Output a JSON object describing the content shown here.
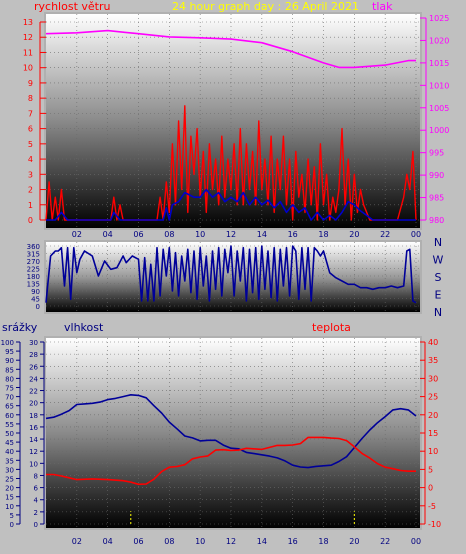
{
  "colors": {
    "wind": "#ff0000",
    "gust": "#0000cc",
    "pressure": "#ff00ff",
    "direction": "#000099",
    "humidity": "#000099",
    "temperature": "#ff0000",
    "rain": "#ffff00",
    "axis_blue": "#000080",
    "title_yellow": "#ffff00"
  },
  "chart_data": [
    {
      "type": "line",
      "title": "24 hour graph day : 26 April 2021",
      "left_label": "rychlost větru",
      "right_label": "tlak",
      "x_ticks": [
        "02",
        "04",
        "06",
        "08",
        "10",
        "12",
        "14",
        "16",
        "18",
        "20",
        "22",
        "00"
      ],
      "y_left": {
        "min": 0,
        "max": 13,
        "ticks": [
          0,
          1,
          2,
          3,
          4,
          5,
          6,
          7,
          8,
          9,
          10,
          11,
          12,
          13
        ]
      },
      "y_right": {
        "min": 980,
        "max": 1025,
        "ticks": [
          980,
          985,
          990,
          995,
          1000,
          1005,
          1010,
          1015,
          1020,
          1025
        ]
      },
      "series": [
        {
          "key": "pressure",
          "axis": "right",
          "x": [
            0,
            2,
            4,
            6,
            8,
            10,
            12,
            14,
            16,
            18,
            19,
            20,
            22,
            23.5,
            24
          ],
          "y": [
            1021.5,
            1021.7,
            1022.2,
            1021.5,
            1020.8,
            1020.6,
            1020.3,
            1019.5,
            1017.5,
            1015,
            1014,
            1014,
            1014.5,
            1015.5,
            1015.5
          ]
        },
        {
          "key": "wind",
          "axis": "left",
          "x": [
            0,
            0.2,
            0.4,
            0.6,
            0.8,
            1.0,
            1.2,
            1.6,
            2.0,
            2.6,
            3.2,
            3.8,
            4.2,
            4.4,
            4.6,
            4.8,
            5.0,
            5.6,
            6.2,
            6.8,
            7.2,
            7.4,
            7.6,
            7.8,
            8.0,
            8.2,
            8.4,
            8.6,
            8.8,
            9.0,
            9.2,
            9.4,
            9.6,
            9.8,
            10.0,
            10.2,
            10.4,
            10.6,
            10.8,
            11.0,
            11.2,
            11.4,
            11.6,
            11.8,
            12.0,
            12.2,
            12.4,
            12.6,
            12.8,
            13.0,
            13.2,
            13.4,
            13.6,
            13.8,
            14.0,
            14.2,
            14.4,
            14.6,
            14.8,
            15.0,
            15.2,
            15.4,
            15.6,
            15.8,
            16.0,
            16.2,
            16.4,
            16.6,
            16.8,
            17.0,
            17.2,
            17.4,
            17.6,
            17.8,
            18.0,
            18.2,
            18.4,
            18.6,
            18.8,
            19.0,
            19.2,
            19.4,
            19.6,
            19.8,
            20.0,
            20.2,
            20.4,
            20.6,
            21.0,
            21.6,
            22.2,
            22.8,
            23.2,
            23.4,
            23.6,
            23.8,
            24.0
          ],
          "y": [
            0,
            2.5,
            0,
            1.5,
            0,
            2,
            0,
            0,
            0,
            0,
            0,
            0,
            0,
            1.5,
            0,
            1,
            0,
            0,
            0,
            0,
            0,
            1.5,
            0,
            2.5,
            0.5,
            5,
            1,
            6.5,
            2,
            7.5,
            0.5,
            5.5,
            3,
            6,
            1.5,
            4.5,
            0.5,
            5,
            2,
            4,
            1,
            5.5,
            1.5,
            4,
            2,
            5,
            1,
            6,
            1,
            5,
            2,
            4.5,
            1,
            6.5,
            2,
            4,
            1,
            5.5,
            0.5,
            4,
            2,
            5.5,
            1,
            4,
            0,
            4.5,
            1.5,
            3,
            0.5,
            4,
            1,
            3.5,
            0,
            5,
            1,
            3,
            0,
            1.5,
            0.5,
            2,
            6,
            1,
            4,
            0,
            3,
            0.5,
            2,
            1,
            0,
            0,
            0,
            0,
            1.5,
            3,
            2,
            4.5,
            0
          ]
        },
        {
          "key": "gust",
          "axis": "left",
          "x": [
            0,
            0.6,
            1.0,
            1.4,
            1.8,
            4.2,
            4.4,
            4.8,
            5.0,
            7.6,
            7.8,
            8.0,
            8.2,
            8.6,
            9.0,
            9.6,
            10.0,
            10.4,
            10.8,
            11.2,
            11.6,
            12.0,
            12.4,
            12.8,
            13.2,
            13.6,
            14.0,
            14.4,
            14.8,
            15.2,
            15.6,
            16.0,
            16.4,
            16.8,
            17.2,
            17.6,
            18.0,
            18.4,
            18.8,
            19.2,
            19.6,
            20.0,
            20.4,
            20.8,
            21.2,
            23.6,
            24.0
          ],
          "y": [
            0,
            0,
            0.5,
            0,
            0,
            0,
            0.5,
            0,
            0,
            0,
            0.8,
            0,
            1.0,
            1.2,
            1.8,
            1.5,
            1.5,
            2.0,
            1.5,
            1.8,
            1.2,
            1.5,
            1.2,
            1.8,
            1.0,
            1.5,
            1.0,
            1.3,
            0.8,
            1.2,
            0.5,
            1.0,
            0.5,
            0.8,
            0,
            0.5,
            0,
            0.3,
            0,
            0.5,
            1.2,
            1.0,
            0.6,
            0.3,
            0,
            0,
            0
          ]
        }
      ]
    },
    {
      "type": "line",
      "right_labels": [
        "N",
        "W",
        "S",
        "E",
        "N"
      ],
      "y": {
        "min": 0,
        "max": 360,
        "ticks": [
          0,
          45,
          90,
          135,
          180,
          225,
          270,
          315,
          360
        ],
        "tick_labels": [
          "0",
          "45",
          "90",
          "135",
          "180",
          "225",
          "270",
          "315",
          "360"
        ]
      },
      "series": [
        {
          "key": "direction",
          "x": [
            0,
            0.3,
            0.6,
            0.8,
            1.0,
            1.2,
            1.4,
            1.6,
            1.8,
            2.0,
            2.2,
            2.5,
            3.0,
            3.4,
            3.8,
            4.2,
            4.6,
            5.0,
            5.2,
            5.6,
            6.0,
            6.2,
            6.4,
            6.6,
            6.8,
            7.0,
            7.2,
            7.4,
            7.6,
            7.8,
            8.0,
            8.2,
            8.4,
            8.6,
            8.8,
            9.0,
            9.2,
            9.4,
            9.6,
            9.8,
            10.0,
            10.2,
            10.4,
            10.6,
            10.8,
            11.0,
            11.2,
            11.4,
            11.6,
            11.8,
            12.0,
            12.2,
            12.4,
            12.6,
            12.8,
            13.0,
            13.2,
            13.4,
            13.6,
            13.8,
            14.0,
            14.2,
            14.4,
            14.6,
            14.8,
            15.0,
            15.2,
            15.4,
            15.6,
            15.8,
            16.0,
            16.2,
            16.4,
            16.6,
            16.8,
            17.0,
            17.2,
            17.4,
            17.6,
            17.8,
            18.0,
            18.4,
            18.8,
            19.2,
            19.6,
            20.0,
            20.4,
            20.8,
            21.2,
            21.6,
            22.0,
            22.4,
            22.8,
            23.2,
            23.4,
            23.6,
            23.8,
            24.0
          ],
          "y": [
            20,
            300,
            330,
            330,
            350,
            120,
            350,
            40,
            350,
            200,
            280,
            330,
            300,
            180,
            270,
            220,
            230,
            300,
            260,
            300,
            280,
            30,
            290,
            30,
            250,
            30,
            350,
            60,
            340,
            180,
            350,
            90,
            320,
            60,
            300,
            150,
            340,
            80,
            330,
            40,
            350,
            120,
            300,
            30,
            330,
            100,
            350,
            60,
            340,
            200,
            360,
            60,
            330,
            150,
            350,
            30,
            340,
            80,
            350,
            40,
            360,
            100,
            330,
            50,
            350,
            30,
            340,
            120,
            350,
            60,
            360,
            330,
            40,
            350,
            100,
            350,
            30,
            350,
            330,
            300,
            330,
            200,
            170,
            150,
            130,
            130,
            110,
            110,
            100,
            110,
            110,
            120,
            110,
            120,
            330,
            340,
            30,
            20
          ]
        }
      ]
    },
    {
      "type": "line",
      "left_label": "srážky",
      "middle_label": "vlhkost",
      "right_label": "teplota",
      "x_ticks": [
        "02",
        "04",
        "06",
        "08",
        "10",
        "12",
        "14",
        "16",
        "18",
        "20",
        "22",
        "00"
      ],
      "y_rain": {
        "min": 0,
        "max": 100,
        "ticks": [
          0,
          5,
          10,
          15,
          20,
          25,
          30,
          35,
          40,
          45,
          50,
          55,
          60,
          65,
          70,
          75,
          80,
          85,
          90,
          95,
          100
        ]
      },
      "y_humidity": {
        "min": 0,
        "max": 30,
        "ticks": [
          0,
          2,
          4,
          6,
          8,
          10,
          12,
          14,
          16,
          18,
          20,
          22,
          24,
          26,
          28,
          30
        ]
      },
      "y_temperature": {
        "min": -10,
        "max": 40,
        "ticks": [
          -10,
          -5,
          0,
          5,
          10,
          15,
          20,
          25,
          30,
          35,
          40
        ]
      },
      "series": [
        {
          "key": "humidity",
          "axis": "humidity",
          "x": [
            0,
            0.5,
            1,
            1.5,
            2,
            2.5,
            3,
            3.5,
            4,
            4.5,
            5,
            5.5,
            6,
            6.5,
            7,
            7.5,
            8,
            8.5,
            9,
            9.5,
            10,
            10.5,
            11,
            11.5,
            12,
            12.5,
            13,
            13.5,
            14,
            14.5,
            15,
            15.5,
            16,
            16.5,
            17,
            17.5,
            18,
            18.5,
            19,
            19.5,
            20,
            20.5,
            21,
            21.5,
            22,
            22.5,
            23,
            23.5,
            24
          ],
          "y": [
            17.4,
            17.6,
            18.1,
            18.7,
            19.7,
            19.8,
            19.9,
            20.1,
            20.5,
            20.7,
            21.0,
            21.3,
            21.2,
            20.8,
            19.5,
            18.3,
            16.8,
            15.7,
            14.5,
            14.2,
            13.7,
            13.8,
            13.8,
            13.0,
            12.5,
            12.4,
            11.8,
            11.6,
            11.4,
            11.2,
            10.9,
            10.4,
            9.7,
            9.4,
            9.3,
            9.5,
            9.6,
            9.7,
            10.3,
            11.1,
            12.6,
            14.1,
            15.5,
            16.7,
            17.7,
            18.8,
            19.0,
            18.8,
            17.8
          ]
        },
        {
          "key": "temperature",
          "axis": "temperature",
          "x": [
            0,
            0.5,
            1,
            1.5,
            2,
            3,
            4,
            5,
            5.5,
            6,
            6.5,
            7,
            7.5,
            8,
            8.5,
            9,
            9.5,
            10,
            10.5,
            11,
            11.5,
            12,
            12.5,
            13,
            14,
            15,
            15.5,
            16,
            16.5,
            17,
            17.5,
            18,
            18.5,
            19,
            19.5,
            20,
            20.5,
            21,
            21.5,
            22,
            22.5,
            23,
            23.5,
            24
          ],
          "y": [
            3.6,
            3.6,
            3.2,
            2.7,
            2.2,
            2.4,
            2.2,
            1.9,
            1.5,
            0.9,
            1.0,
            2.3,
            4.4,
            5.6,
            5.8,
            6.3,
            7.9,
            8.4,
            8.7,
            10.3,
            10.4,
            10.2,
            10.3,
            10.8,
            10.5,
            11.6,
            11.6,
            11.7,
            12.1,
            13.8,
            13.8,
            13.8,
            13.6,
            13.5,
            12.9,
            11.2,
            9.4,
            8.1,
            6.6,
            5.6,
            5.2,
            4.7,
            4.5,
            4.5
          ]
        },
        {
          "key": "rain",
          "axis": "rain",
          "x": [
            5.5,
            20.0
          ],
          "y": [
            7,
            7
          ]
        }
      ]
    }
  ]
}
